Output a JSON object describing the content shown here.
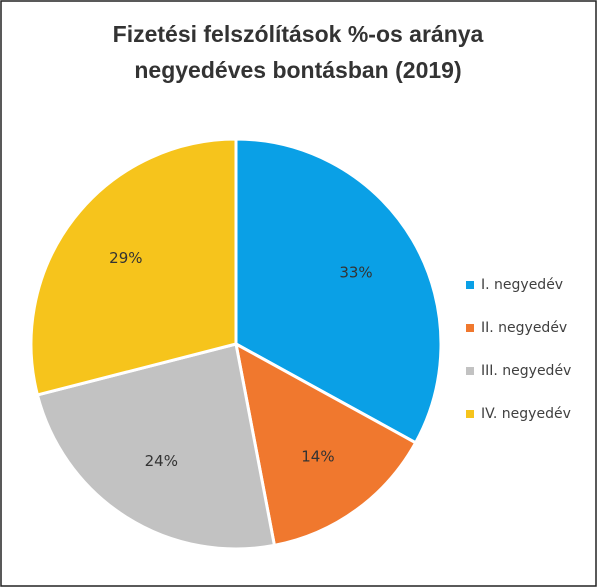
{
  "chart_data": {
    "type": "pie",
    "title": [
      "Fizetési felszólítások %-os aránya",
      "negyedéves bontásban (2019)"
    ],
    "categories": [
      "I. negyedév",
      "II. negyedév",
      "III. negyedév",
      "IV. negyedév"
    ],
    "values": [
      33,
      14,
      24,
      29
    ],
    "value_labels": [
      "33%",
      "14%",
      "24%",
      "29%"
    ],
    "colors": [
      "#0aa0e6",
      "#f0782e",
      "#c2c2c2",
      "#f6c41c"
    ],
    "legend": "right"
  }
}
